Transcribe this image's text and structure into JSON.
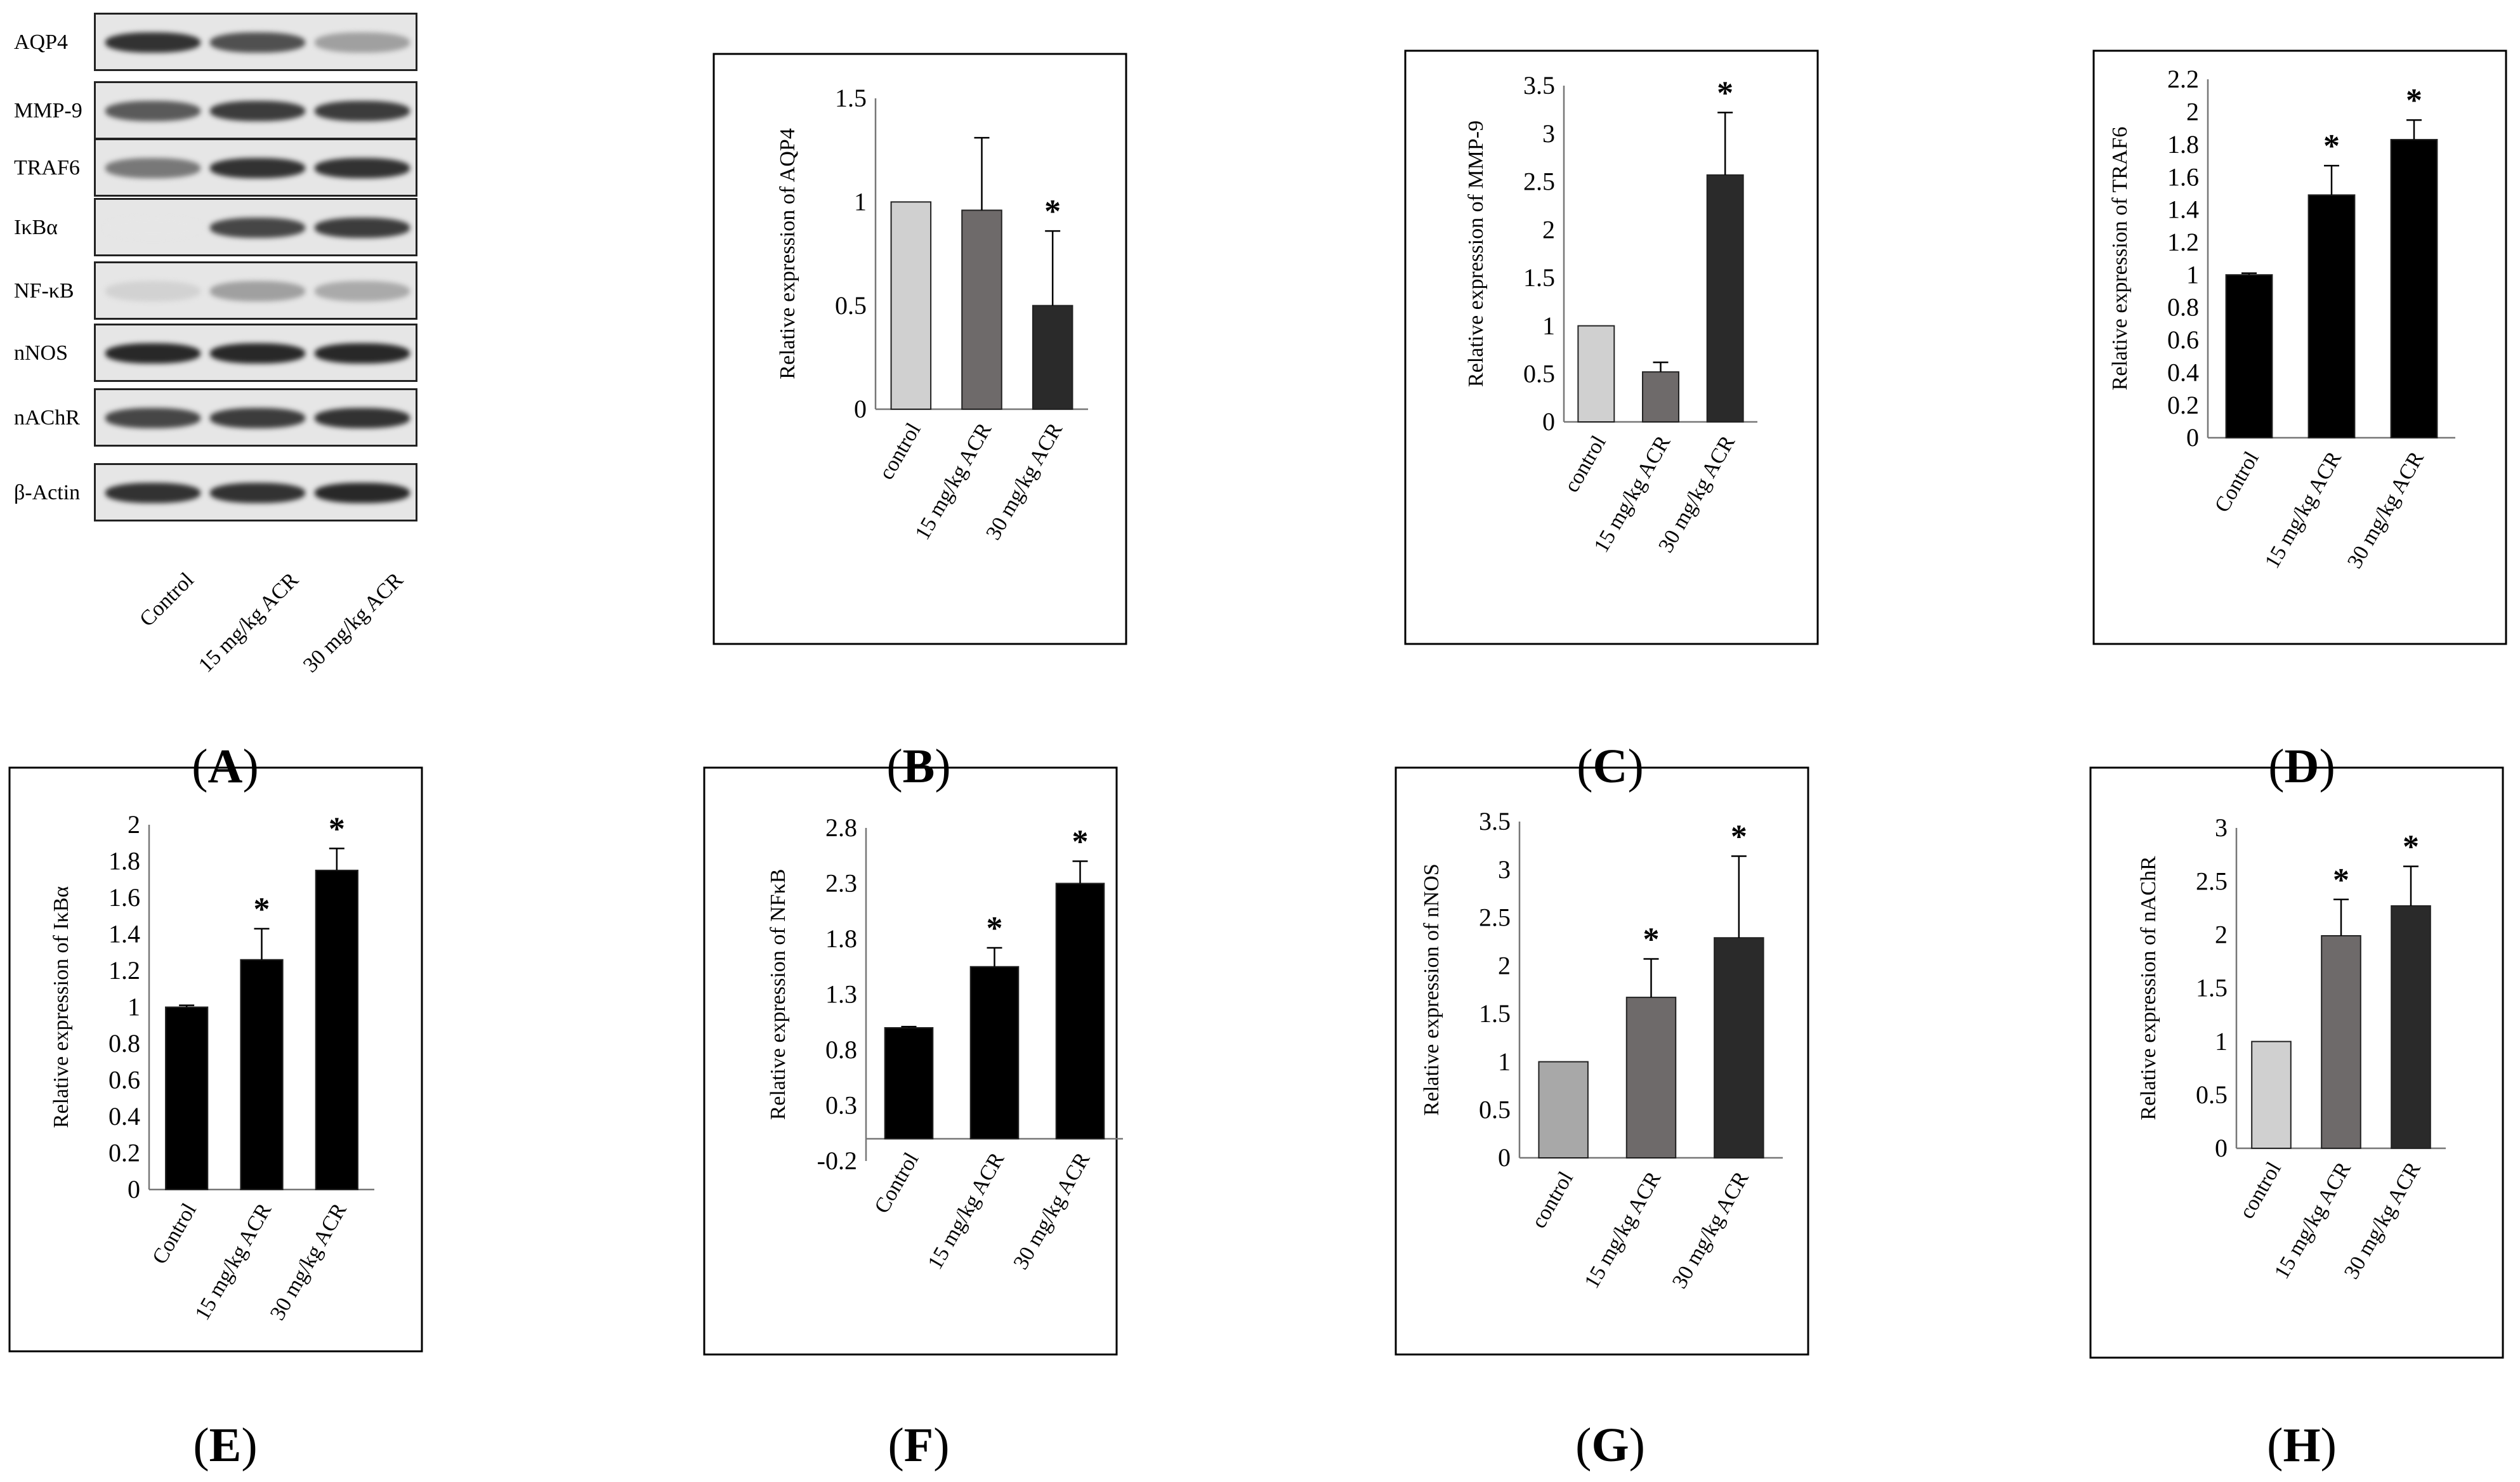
{
  "panel_labels": [
    "A",
    "B",
    "C",
    "D",
    "E",
    "F",
    "G",
    "H"
  ],
  "western_blot": {
    "proteins": [
      "AQP4",
      "MMP-9",
      "TRAF6",
      "IκBα",
      "NF-κB",
      "nNOS",
      "nAChR",
      "β-Actin"
    ],
    "lanes": [
      "Control",
      "15 mg/kg ACR",
      "30 mg/kg ACR"
    ],
    "band_intensity": [
      [
        0.9,
        0.75,
        0.35
      ],
      [
        0.7,
        0.85,
        0.85
      ],
      [
        0.55,
        0.9,
        0.9
      ],
      [
        0.0,
        0.8,
        0.85
      ],
      [
        0.1,
        0.35,
        0.3
      ],
      [
        0.95,
        0.95,
        0.95
      ],
      [
        0.8,
        0.85,
        0.9
      ],
      [
        0.9,
        0.9,
        0.95
      ]
    ]
  },
  "chart_data": [
    {
      "panel": "B",
      "type": "bar",
      "title": "",
      "ylabel": "Relative expression of AQP4",
      "categories": [
        "control",
        "15 mg/kg ACR",
        "30 mg/kg ACR"
      ],
      "values": [
        1.0,
        0.96,
        0.5
      ],
      "errors": [
        0,
        0.35,
        0.36
      ],
      "significance": [
        "",
        "",
        "*"
      ],
      "yticks": [
        "0",
        "0.5",
        "1",
        "1.5"
      ],
      "ylim": [
        0,
        1.5
      ],
      "colors": [
        "#d0d0d0",
        "#6e6a6a",
        "#2a2a2a"
      ]
    },
    {
      "panel": "C",
      "type": "bar",
      "title": "",
      "ylabel": "Relative expression of MMP-9",
      "categories": [
        "control",
        "15 mg/kg ACR",
        "30 mg/kg ACR"
      ],
      "values": [
        1.0,
        0.52,
        2.57
      ],
      "errors": [
        0,
        0.1,
        0.65
      ],
      "significance": [
        "",
        "",
        "*"
      ],
      "yticks": [
        "0",
        "0.5",
        "1",
        "1.5",
        "2",
        "2.5",
        "3",
        "3.5"
      ],
      "ylim": [
        0,
        3.5
      ],
      "colors": [
        "#d0d0d0",
        "#6e6a6a",
        "#2a2a2a"
      ]
    },
    {
      "panel": "D",
      "type": "bar",
      "title": "",
      "ylabel": "Relative expression of TRAF6",
      "categories": [
        "Control",
        "15 mg/kg ACR",
        "30 mg/kg ACR"
      ],
      "values": [
        1.0,
        1.49,
        1.83
      ],
      "errors": [
        0.01,
        0.18,
        0.12
      ],
      "significance": [
        "",
        "*",
        "*"
      ],
      "yticks": [
        "0",
        "0.2",
        "0.4",
        "0.6",
        "0.8",
        "1",
        "1.2",
        "1.4",
        "1.6",
        "1.8",
        "2",
        "2.2"
      ],
      "ylim": [
        0,
        2.2
      ],
      "colors": [
        "#000000",
        "#000000",
        "#000000"
      ]
    },
    {
      "panel": "E",
      "type": "bar",
      "title": "",
      "ylabel": "Relative expression of IκBα",
      "categories": [
        "Control",
        "15 mg/kg ACR",
        "30 mg/kg ACR"
      ],
      "values": [
        1.0,
        1.26,
        1.75
      ],
      "errors": [
        0.01,
        0.17,
        0.12
      ],
      "significance": [
        "",
        "*",
        "*"
      ],
      "yticks": [
        "0",
        "0.2",
        "0.4",
        "0.6",
        "0.8",
        "1",
        "1.2",
        "1.4",
        "1.6",
        "1.8",
        "2"
      ],
      "ylim": [
        0,
        2
      ],
      "colors": [
        "#000000",
        "#000000",
        "#000000"
      ]
    },
    {
      "panel": "F",
      "type": "bar",
      "title": "",
      "ylabel": "Relative expression of NFκB",
      "categories": [
        "Control",
        "15 mg/kg ACR",
        "30 mg/kg ACR"
      ],
      "values": [
        1.0,
        1.55,
        2.3
      ],
      "errors": [
        0.01,
        0.17,
        0.2
      ],
      "significance": [
        "",
        "*",
        "*"
      ],
      "yticks": [
        "-0.2",
        "0.3",
        "0.8",
        "1.3",
        "1.8",
        "2.3",
        "2.8"
      ],
      "ylim": [
        -0.2,
        2.8
      ],
      "baseline": 0,
      "colors": [
        "#000000",
        "#000000",
        "#000000"
      ]
    },
    {
      "panel": "G",
      "type": "bar",
      "title": "",
      "ylabel": "Relative expression of nNOS",
      "categories": [
        "control",
        "15 mg/kg ACR",
        "30 mg/kg ACR"
      ],
      "values": [
        1.0,
        1.67,
        2.29
      ],
      "errors": [
        0,
        0.4,
        0.85
      ],
      "significance": [
        "",
        "*",
        "*"
      ],
      "yticks": [
        "0",
        "0.5",
        "1",
        "1.5",
        "2",
        "2.5",
        "3",
        "3.5"
      ],
      "ylim": [
        0,
        3.5
      ],
      "colors": [
        "#a8a8a8",
        "#6e6a6a",
        "#2a2a2a"
      ]
    },
    {
      "panel": "H",
      "type": "bar",
      "title": "",
      "ylabel": "Relative expression of nAChR",
      "categories": [
        "control",
        "15 mg/kg ACR",
        "30 mg/kg ACR"
      ],
      "values": [
        1.0,
        1.99,
        2.27
      ],
      "errors": [
        0,
        0.34,
        0.37
      ],
      "significance": [
        "",
        "*",
        "*"
      ],
      "yticks": [
        "0",
        "0.5",
        "1",
        "1.5",
        "2",
        "2.5",
        "3"
      ],
      "ylim": [
        0,
        3
      ],
      "colors": [
        "#d0d0d0",
        "#6e6a6a",
        "#2a2a2a"
      ]
    }
  ]
}
